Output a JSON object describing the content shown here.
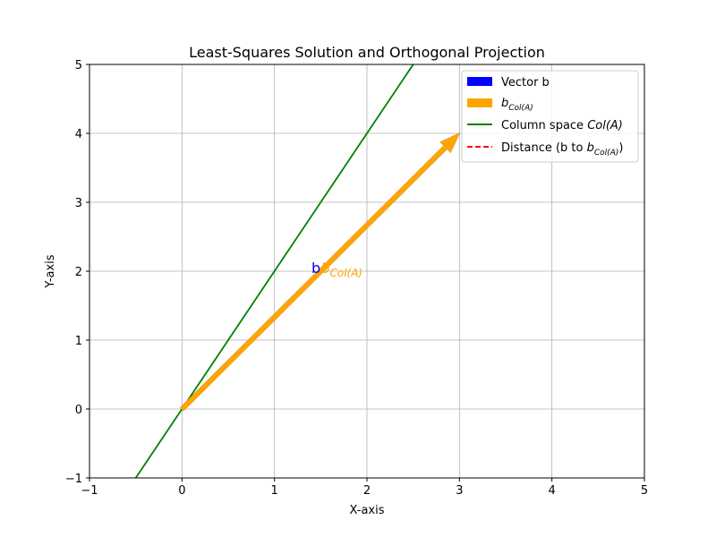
{
  "chart_data": {
    "type": "line",
    "title": "Least-Squares Solution and Orthogonal Projection",
    "xlabel": "X-axis",
    "ylabel": "Y-axis",
    "xlim": [
      -1,
      5
    ],
    "ylim": [
      -1,
      5
    ],
    "xticks": [
      -1,
      0,
      1,
      2,
      3,
      4,
      5
    ],
    "yticks": [
      -1,
      0,
      1,
      2,
      3,
      4,
      5
    ],
    "xtick_labels": [
      "−1",
      "0",
      "1",
      "2",
      "3",
      "4",
      "5"
    ],
    "ytick_labels": [
      "−1",
      "0",
      "1",
      "2",
      "3",
      "4",
      "5"
    ],
    "grid": true,
    "legend_position": "top-right",
    "colors": {
      "vector_b": "#0000ff",
      "projection": "#ffa500",
      "column_space": "#008000",
      "distance": "#ff0000"
    },
    "series": [
      {
        "name": "Vector b",
        "kind": "arrow",
        "from": [
          0,
          0
        ],
        "to": [
          3,
          4
        ]
      },
      {
        "name": "b_Col(A)",
        "kind": "arrow",
        "from": [
          0,
          0
        ],
        "to": [
          3,
          4
        ]
      },
      {
        "name": "Column space Col(A)",
        "kind": "line",
        "x": [
          -0.5,
          2.5
        ],
        "y": [
          -1,
          5
        ]
      },
      {
        "name": "Distance (b to b_Col(A))",
        "kind": "dashed-line",
        "x": [
          3,
          3
        ],
        "y": [
          4,
          4
        ]
      }
    ],
    "legend": {
      "entry1": {
        "text": "Vector b"
      },
      "entry2": {
        "base": "b",
        "sub": "Col(A)"
      },
      "entry3": {
        "text": "Column space ",
        "ital": "Col(A)"
      },
      "entry4": {
        "text": "Distance (b to ",
        "base": "b",
        "sub": "Col(A)",
        "tail": ")"
      }
    },
    "annotations": {
      "b_label": {
        "text": "b",
        "at": [
          1.4,
          2.0
        ]
      },
      "proj_label": {
        "base": "b",
        "sub": "Col(A)",
        "at": [
          1.5,
          2.0
        ]
      }
    }
  }
}
